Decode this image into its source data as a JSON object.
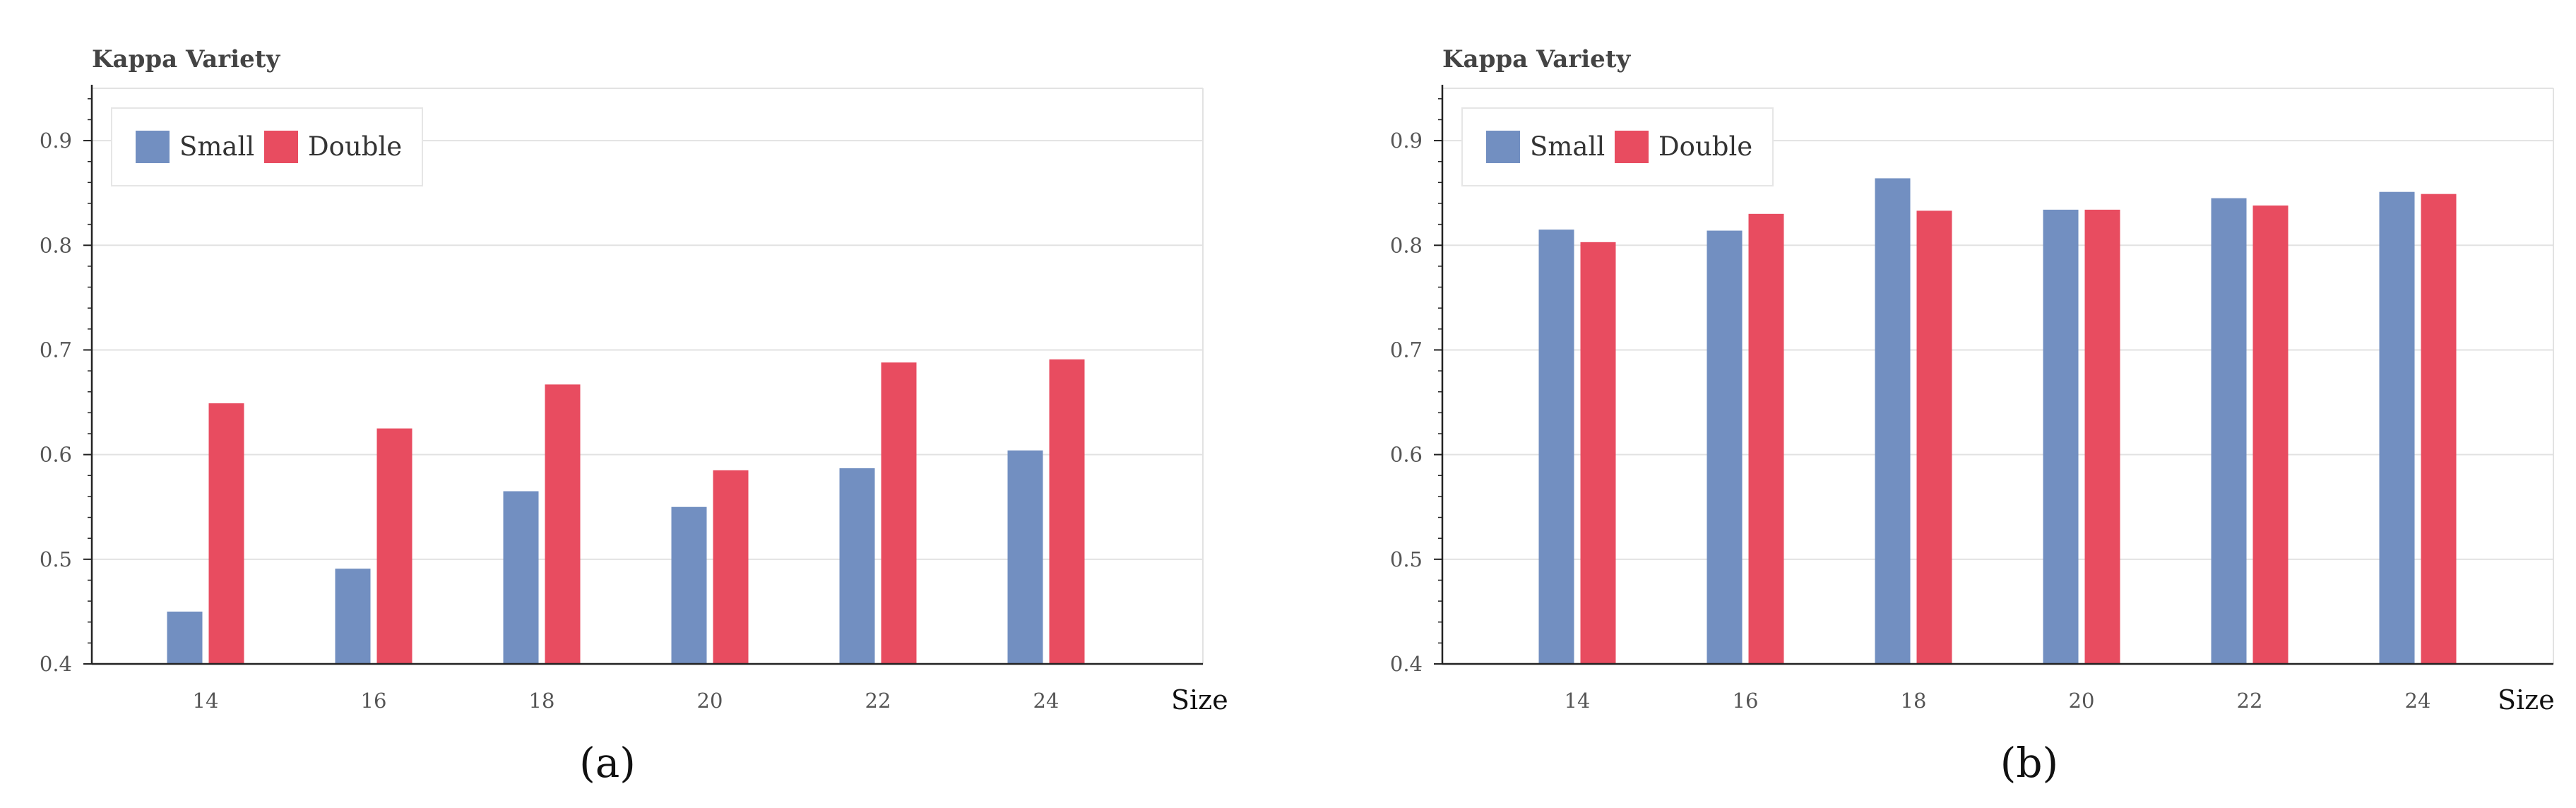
{
  "colors": {
    "small": "#728fc1",
    "double": "#e84c60",
    "grid": "#e2e2e2",
    "axis": "#222222"
  },
  "chart_data": [
    {
      "type": "bar",
      "title": "Kappa Variety",
      "caption": "(a)",
      "xlabel": "Size",
      "ylabel": "",
      "categories": [
        "14",
        "16",
        "18",
        "20",
        "22",
        "24"
      ],
      "series": [
        {
          "name": "Small",
          "values": [
            0.45,
            0.491,
            0.565,
            0.55,
            0.587,
            0.604
          ]
        },
        {
          "name": "Double",
          "values": [
            0.649,
            0.625,
            0.667,
            0.585,
            0.688,
            0.691
          ]
        }
      ],
      "ylim": [
        0.4,
        0.95
      ],
      "yticks": [
        "0.4",
        "0.5",
        "0.6",
        "0.7",
        "0.8",
        "0.9"
      ],
      "grid": true,
      "legend": "top-left"
    },
    {
      "type": "bar",
      "title": "Kappa Variety",
      "caption": "(b)",
      "xlabel": "Size",
      "ylabel": "",
      "categories": [
        "14",
        "16",
        "18",
        "20",
        "22",
        "24"
      ],
      "series": [
        {
          "name": "Small",
          "values": [
            0.815,
            0.814,
            0.864,
            0.834,
            0.845,
            0.851
          ]
        },
        {
          "name": "Double",
          "values": [
            0.803,
            0.83,
            0.833,
            0.834,
            0.838,
            0.849
          ]
        }
      ],
      "ylim": [
        0.4,
        0.95
      ],
      "yticks": [
        "0.4",
        "0.5",
        "0.6",
        "0.7",
        "0.8",
        "0.9"
      ],
      "grid": true,
      "legend": "top-left"
    }
  ]
}
